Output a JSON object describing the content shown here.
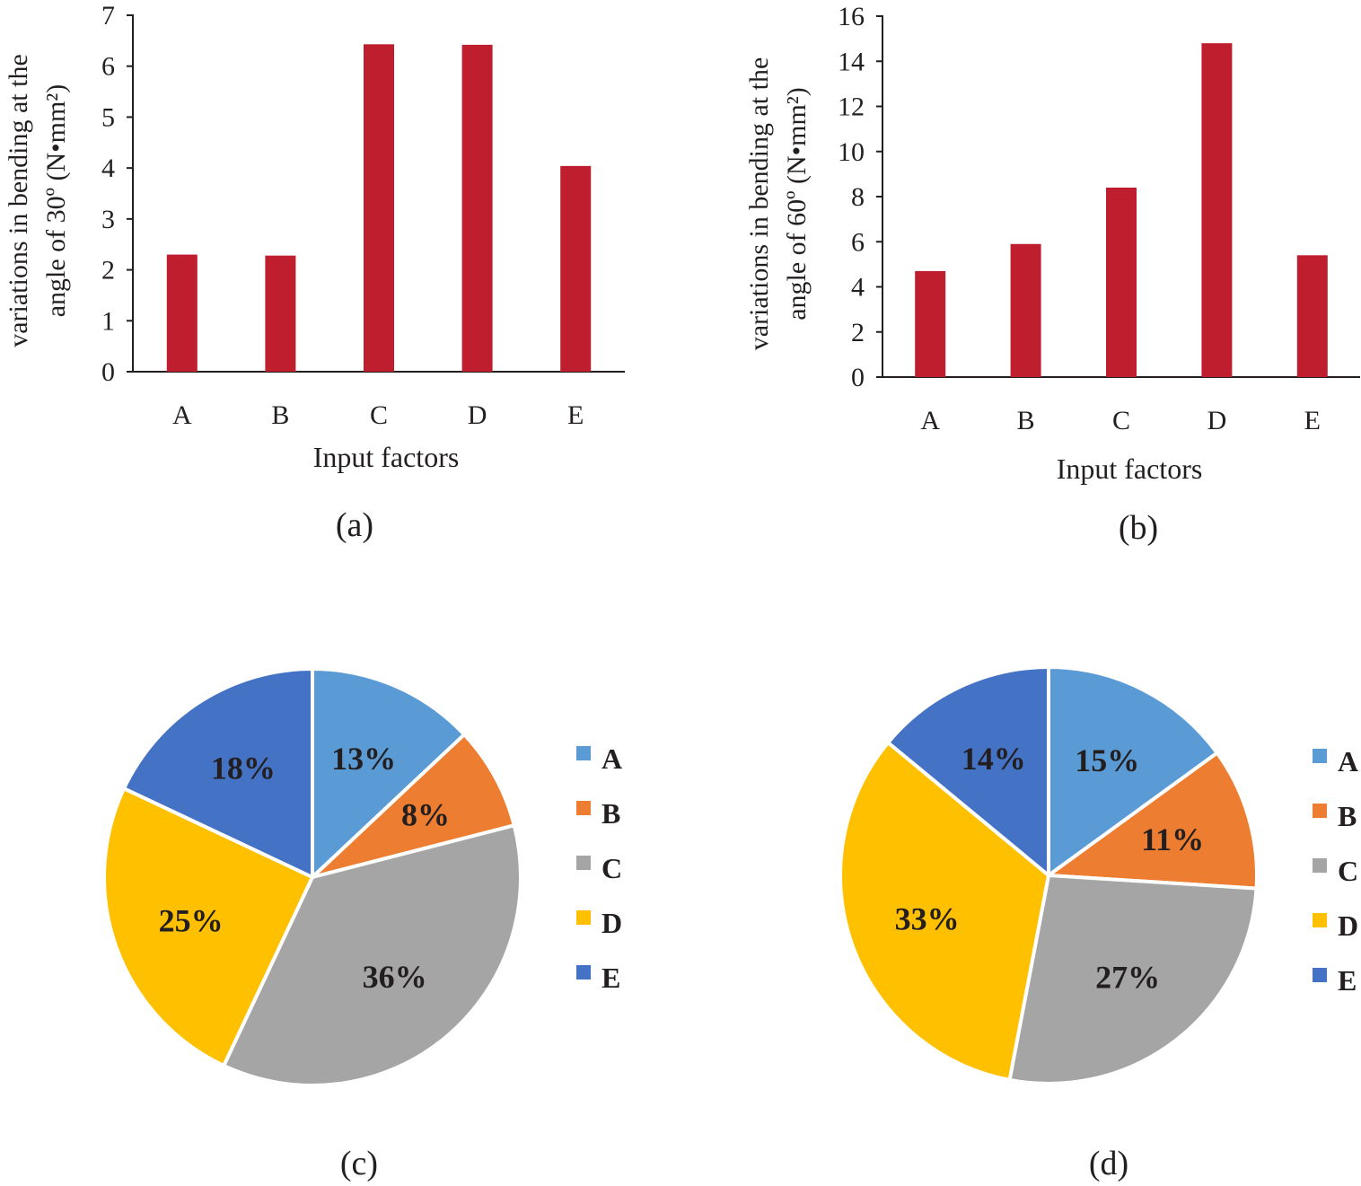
{
  "chart_data": [
    {
      "id": "a",
      "type": "bar",
      "panel_label": "(a)",
      "categories": [
        "A",
        "B",
        "C",
        "D",
        "E"
      ],
      "values": [
        2.3,
        2.28,
        6.43,
        6.42,
        4.04
      ],
      "xlabel": "Input factors",
      "ylabel_lines": [
        "variations in bending at the",
        "angle of 30º (N•mm²)"
      ],
      "ylim": [
        0,
        7
      ],
      "yticks": [
        "0",
        "1",
        "2",
        "3",
        "4",
        "5",
        "6",
        "7"
      ],
      "color": "#be1e2d"
    },
    {
      "id": "b",
      "type": "bar",
      "panel_label": "(b)",
      "categories": [
        "A",
        "B",
        "C",
        "D",
        "E"
      ],
      "values": [
        4.7,
        5.9,
        8.4,
        14.8,
        5.4
      ],
      "xlabel": "Input factors",
      "ylabel_lines": [
        "variations in bending at the",
        "angle of 60º (N•mm²)"
      ],
      "ylim": [
        0,
        16
      ],
      "yticks": [
        "0",
        "2",
        "4",
        "6",
        "8",
        "10",
        "12",
        "14",
        "16"
      ],
      "color": "#be1e2d"
    },
    {
      "id": "c",
      "type": "pie",
      "panel_label": "(c)",
      "categories": [
        "A",
        "B",
        "C",
        "D",
        "E"
      ],
      "values": [
        13,
        8,
        36,
        25,
        18
      ],
      "labels": [
        "13%",
        "8%",
        "36%",
        "25%",
        "18%"
      ],
      "colors": [
        "#5b9bd5",
        "#ed7d31",
        "#a5a5a5",
        "#ffc000",
        "#4472c4"
      ],
      "legend": [
        "A",
        "B",
        "C",
        "D",
        "E"
      ]
    },
    {
      "id": "d",
      "type": "pie",
      "panel_label": "(d)",
      "categories": [
        "A",
        "B",
        "C",
        "D",
        "E"
      ],
      "values": [
        15,
        11,
        27,
        33,
        14
      ],
      "labels": [
        "15%",
        "11%",
        "27%",
        "33%",
        "14%"
      ],
      "colors": [
        "#5b9bd5",
        "#ed7d31",
        "#a5a5a5",
        "#ffc000",
        "#4472c4"
      ],
      "legend": [
        "A",
        "B",
        "C",
        "D",
        "E"
      ]
    }
  ]
}
